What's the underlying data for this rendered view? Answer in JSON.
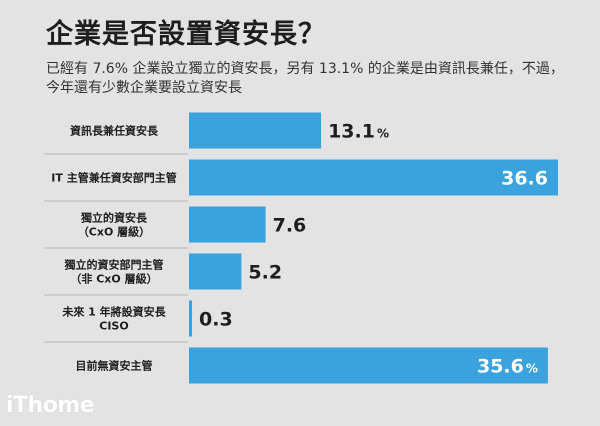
{
  "header": {
    "title": "企業是否設置資安長？",
    "subtitle": "已經有 7.6% 企業設立獨立的資安長，另有 13.1% 的企業是由資訊長兼任，不過，今年還有少數企業要設立資安長"
  },
  "brand": {
    "logo_text": "iThome"
  },
  "colors": {
    "bar": "#3aa3dd",
    "background": "#e3e3e3",
    "divider": "#b5b5b5",
    "text_dark": "#1e1e1e",
    "text_light": "#ffffff"
  },
  "chart_data": {
    "type": "bar",
    "orientation": "horizontal",
    "categories": [
      [
        "資訊長兼任資安長"
      ],
      [
        "IT 主管兼任資安部門主管"
      ],
      [
        "獨立的資安長",
        "（CxO 層級）"
      ],
      [
        "獨立的資安部門主管",
        "（非 CxO 層級）"
      ],
      [
        "未來 1 年將設資安長",
        "CISO"
      ],
      [
        "目前無資安主管"
      ]
    ],
    "values": [
      13.1,
      36.6,
      7.6,
      5.2,
      0.3,
      35.6
    ],
    "value_labels": [
      "13.1",
      "36.6",
      "7.6",
      "5.2",
      "0.3",
      "35.6"
    ],
    "unit_shown": [
      true,
      false,
      false,
      false,
      false,
      true
    ],
    "unit": "%",
    "xlim": [
      0,
      36.6
    ],
    "grid": false,
    "legend": "none"
  }
}
